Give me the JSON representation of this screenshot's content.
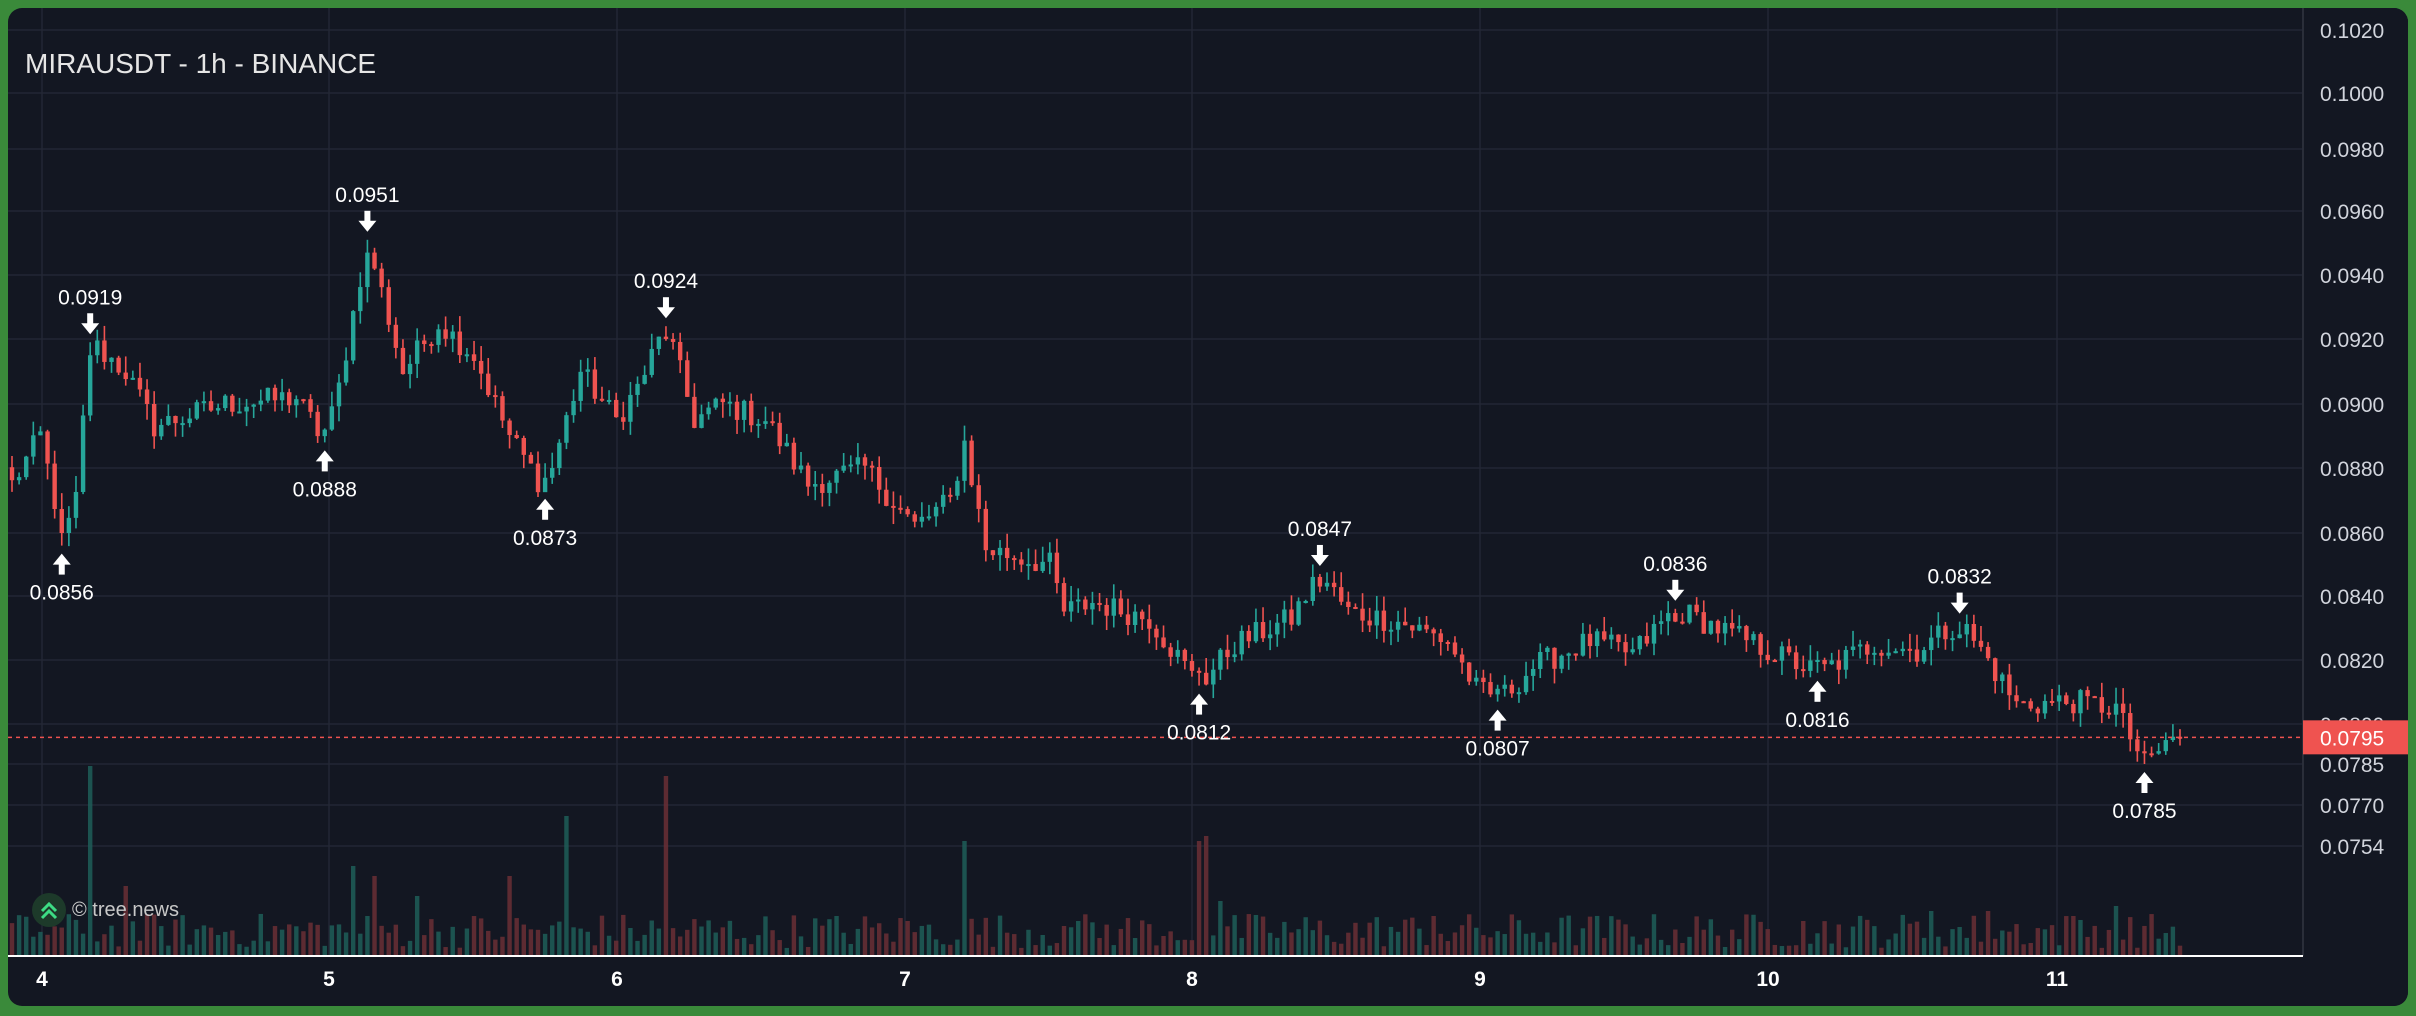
{
  "chart_title": "MIRAUSDT - 1h - BINANCE",
  "watermark_text": "© tree.news",
  "watermark_icon": "tree-news-logo-icon",
  "colors": {
    "background": "#131722",
    "up": "#26a69a",
    "down": "#ef5350",
    "grid": "#232734",
    "axis_text": "#d1d4dc",
    "price_line": "#ef5350"
  },
  "chart_data": {
    "type": "candlestick",
    "symbol": "MIRAUSDT",
    "timeframe": "1h",
    "exchange": "BINANCE",
    "x_tick_labels": [
      "4",
      "5",
      "6",
      "7",
      "8",
      "9",
      "10",
      "11"
    ],
    "y_tick_labels": [
      "0.1020",
      "0.1000",
      "0.0980",
      "0.0960",
      "0.0940",
      "0.0920",
      "0.0900",
      "0.0880",
      "0.0860",
      "0.0840",
      "0.0820",
      "0.0800",
      "0.0785",
      "0.0770",
      "0.0754"
    ],
    "y_ticks": [
      0.102,
      0.1,
      0.098,
      0.096,
      0.094,
      0.092,
      0.09,
      0.088,
      0.086,
      0.084,
      0.082,
      0.08,
      0.0785,
      0.077,
      0.0754
    ],
    "ylim": [
      0.0749,
      0.1021
    ],
    "current_price": "0.0795",
    "current_price_value": 0.0795,
    "grid": true,
    "anchor_points": [
      [
        0,
        0.0875
      ],
      [
        4,
        0.089
      ],
      [
        6,
        0.087
      ],
      [
        7,
        0.0856
      ],
      [
        9,
        0.087
      ],
      [
        11,
        0.0919
      ],
      [
        16,
        0.091
      ],
      [
        20,
        0.0893
      ],
      [
        30,
        0.09
      ],
      [
        40,
        0.0902
      ],
      [
        44,
        0.0888
      ],
      [
        46,
        0.0905
      ],
      [
        50,
        0.0951
      ],
      [
        55,
        0.091
      ],
      [
        60,
        0.0925
      ],
      [
        65,
        0.0915
      ],
      [
        70,
        0.089
      ],
      [
        75,
        0.0873
      ],
      [
        80,
        0.091
      ],
      [
        85,
        0.0895
      ],
      [
        88,
        0.0905
      ],
      [
        92,
        0.0924
      ],
      [
        96,
        0.0895
      ],
      [
        100,
        0.09
      ],
      [
        106,
        0.0895
      ],
      [
        112,
        0.0875
      ],
      [
        120,
        0.088
      ],
      [
        127,
        0.0862
      ],
      [
        132,
        0.087
      ],
      [
        134,
        0.0888
      ],
      [
        137,
        0.0855
      ],
      [
        142,
        0.0852
      ],
      [
        146,
        0.085
      ],
      [
        148,
        0.0835
      ],
      [
        152,
        0.0838
      ],
      [
        160,
        0.0833
      ],
      [
        167,
        0.0812
      ],
      [
        172,
        0.0825
      ],
      [
        180,
        0.0833
      ],
      [
        184,
        0.0847
      ],
      [
        188,
        0.0835
      ],
      [
        195,
        0.0832
      ],
      [
        202,
        0.0826
      ],
      [
        206,
        0.0811
      ],
      [
        209,
        0.0807
      ],
      [
        214,
        0.0818
      ],
      [
        222,
        0.0826
      ],
      [
        228,
        0.0822
      ],
      [
        234,
        0.0836
      ],
      [
        240,
        0.083
      ],
      [
        247,
        0.0823
      ],
      [
        254,
        0.0816
      ],
      [
        262,
        0.0825
      ],
      [
        268,
        0.0823
      ],
      [
        274,
        0.0832
      ],
      [
        278,
        0.082
      ],
      [
        282,
        0.0806
      ],
      [
        290,
        0.0807
      ],
      [
        296,
        0.0805
      ],
      [
        300,
        0.0785
      ],
      [
        304,
        0.0795
      ]
    ],
    "annotations": [
      {
        "label": "0.0919",
        "value": 0.0919,
        "index": 11,
        "type": "high"
      },
      {
        "label": "0.0856",
        "value": 0.0856,
        "index": 7,
        "type": "low"
      },
      {
        "label": "0.0951",
        "value": 0.0951,
        "index": 50,
        "type": "high"
      },
      {
        "label": "0.0888",
        "value": 0.0888,
        "index": 44,
        "type": "low"
      },
      {
        "label": "0.0924",
        "value": 0.0924,
        "index": 92,
        "type": "high"
      },
      {
        "label": "0.0873",
        "value": 0.0873,
        "index": 75,
        "type": "low"
      },
      {
        "label": "0.0847",
        "value": 0.0847,
        "index": 184,
        "type": "high"
      },
      {
        "label": "0.0812",
        "value": 0.0812,
        "index": 167,
        "type": "low"
      },
      {
        "label": "0.0807",
        "value": 0.0807,
        "index": 209,
        "type": "low"
      },
      {
        "label": "0.0836",
        "value": 0.0836,
        "index": 234,
        "type": "high"
      },
      {
        "label": "0.0816",
        "value": 0.0816,
        "index": 254,
        "type": "low"
      },
      {
        "label": "0.0832",
        "value": 0.0832,
        "index": 274,
        "type": "high"
      },
      {
        "label": "0.0785",
        "value": 0.0785,
        "index": 300,
        "type": "low"
      }
    ]
  }
}
